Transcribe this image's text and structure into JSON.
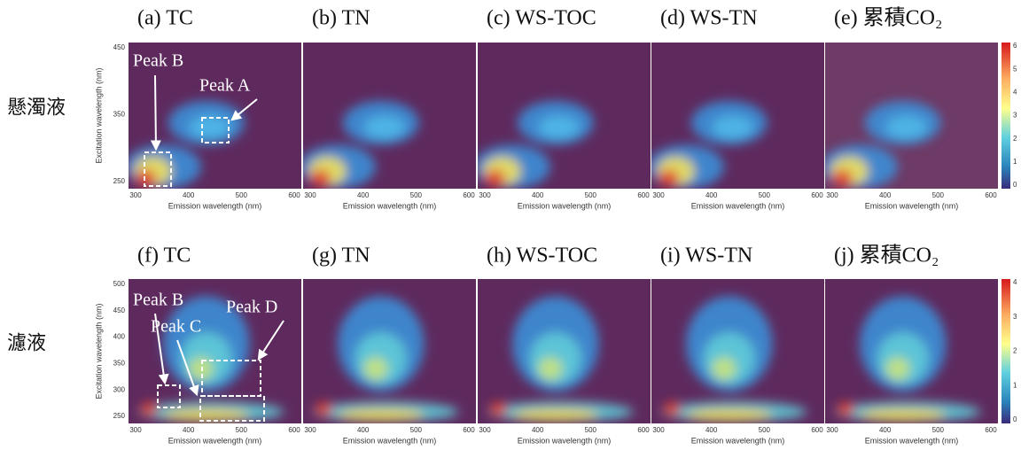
{
  "rows": [
    {
      "label": "懸濁液",
      "panels": [
        "(a) TC",
        "(b) TN",
        "(c) WS-TOC",
        "(d) WS-TN",
        "(e) 累積CO₂"
      ],
      "x_ticks": [
        "300",
        "400",
        "500",
        "600"
      ],
      "y_ticks": [
        "450",
        "350",
        "250"
      ],
      "colorbar_ticks": [
        "6",
        "5",
        "4",
        "3",
        "2",
        "1",
        "0"
      ],
      "annotations": [
        "Peak B",
        "Peak A"
      ]
    },
    {
      "label": "濾液",
      "panels": [
        "(f) TC",
        "(g) TN",
        "(h) WS-TOC",
        "(i) WS-TN",
        "(j) 累積CO₂"
      ],
      "x_ticks": [
        "300",
        "400",
        "500",
        "600"
      ],
      "y_ticks": [
        "500",
        "450",
        "400",
        "350",
        "300",
        "250"
      ],
      "colorbar_ticks": [
        "4",
        "3",
        "2",
        "1",
        "0"
      ],
      "annotations": [
        "Peak B",
        "Peak C",
        "Peak D"
      ]
    }
  ],
  "x_label": "Emission wavelength (nm)",
  "y_label": "Excitation wavelength (nm)"
}
